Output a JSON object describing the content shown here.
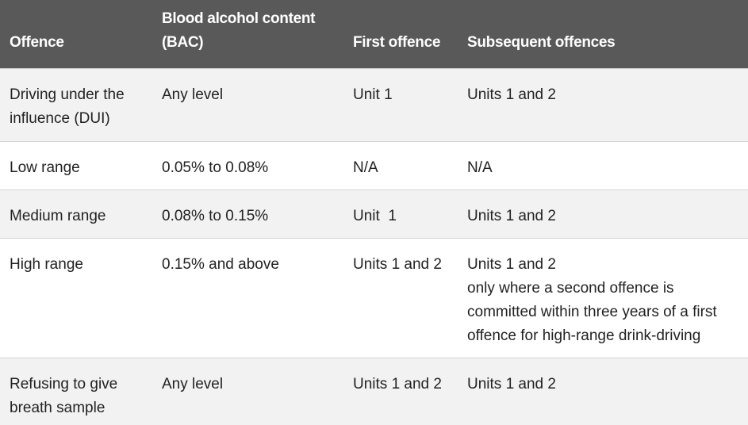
{
  "table": {
    "headers": [
      "Offence",
      "Blood alcohol content (BAC)",
      "First offence",
      "Subsequent offences"
    ],
    "rows": [
      {
        "offence": "Driving under the influence (DUI)",
        "bac": "Any level",
        "first": "Unit 1",
        "subsequent": "Units 1 and 2",
        "subsequent_note": ""
      },
      {
        "offence": "Low range",
        "bac": "0.05% to 0.08%",
        "first": "N/A",
        "subsequent": "N/A",
        "subsequent_note": ""
      },
      {
        "offence": "Medium range",
        "bac": "0.08% to 0.15%",
        "first": "Unit  1",
        "subsequent": "Units 1 and 2",
        "subsequent_note": ""
      },
      {
        "offence": "High range",
        "bac": "0.15% and above",
        "first": "Units 1 and 2",
        "subsequent": "Units 1 and 2",
        "subsequent_note": "only where a second offence is committed within three years of a first offence for high-range drink-driving"
      },
      {
        "offence": "Refusing to give breath sample",
        "bac": "Any level",
        "first": "Units 1 and 2",
        "subsequent": "Units 1 and 2",
        "subsequent_note": ""
      }
    ]
  }
}
